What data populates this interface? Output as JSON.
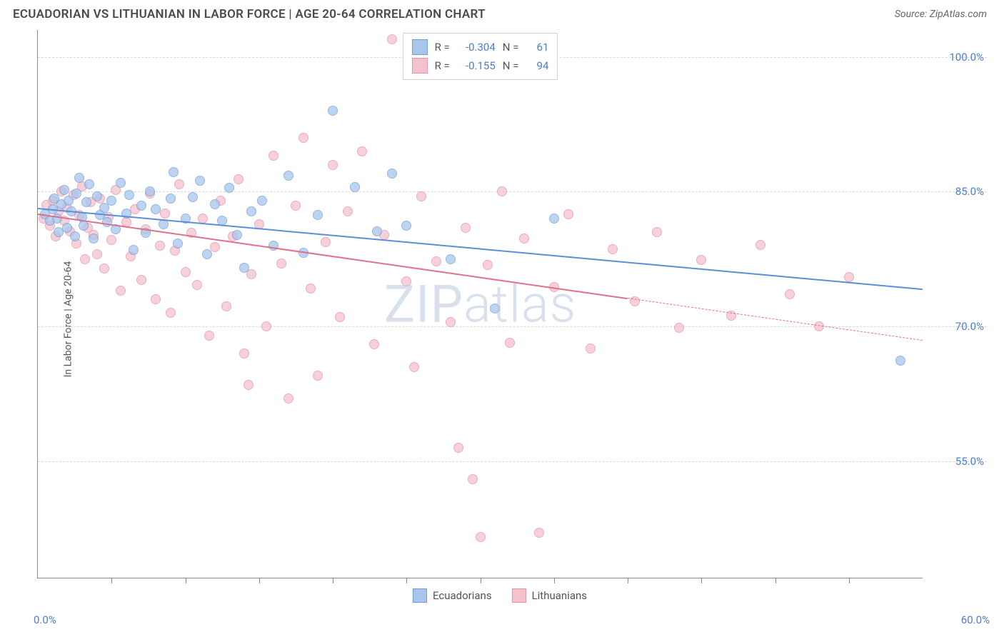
{
  "title": "ECUADORIAN VS LITHUANIAN IN LABOR FORCE | AGE 20-64 CORRELATION CHART",
  "source_label": "Source: ZipAtlas.com",
  "y_axis_label": "In Labor Force | Age 20-64",
  "watermark": "ZIPatlas",
  "chart": {
    "type": "scatter",
    "background_color": "#ffffff",
    "grid_color": "#d8d8d8",
    "axis_color": "#888888",
    "tick_label_color": "#4a7fd1",
    "axis_label_color": "#555555",
    "axis_label_fontsize": 14,
    "tick_label_fontsize": 15,
    "x_domain": [
      0,
      60
    ],
    "y_domain": [
      42,
      103
    ],
    "x_min_label": "0.0%",
    "x_max_label": "60.0%",
    "y_ticks": [
      55.0,
      70.0,
      85.0,
      100.0
    ],
    "y_tick_labels": [
      "55.0%",
      "70.0%",
      "85.0%",
      "100.0%"
    ],
    "x_tick_positions": [
      5,
      10,
      15,
      20,
      25,
      30,
      35,
      40,
      45,
      50,
      55
    ],
    "marker_radius": 7,
    "marker_fill_opacity": 0.35,
    "line_width": 2.5,
    "series": [
      {
        "name": "Ecuadorians",
        "color_fill": "#a8c6ec",
        "color_stroke": "#6f9fd8",
        "line_color": "#5b8fd6",
        "R": "-0.304",
        "N": "61",
        "trend": {
          "x1": 0,
          "y1": 83.2,
          "x2": 60,
          "y2": 74.2,
          "solid_until_x": 60
        },
        "points": [
          [
            0.5,
            82.5
          ],
          [
            0.8,
            81.8
          ],
          [
            1.0,
            83.0
          ],
          [
            1.1,
            84.2
          ],
          [
            1.3,
            82.0
          ],
          [
            1.4,
            80.5
          ],
          [
            1.6,
            83.6
          ],
          [
            1.8,
            85.2
          ],
          [
            2.0,
            81.0
          ],
          [
            2.1,
            84.0
          ],
          [
            2.3,
            82.8
          ],
          [
            2.5,
            80.0
          ],
          [
            2.6,
            84.8
          ],
          [
            2.8,
            86.5
          ],
          [
            3.0,
            82.2
          ],
          [
            3.1,
            81.2
          ],
          [
            3.3,
            83.8
          ],
          [
            3.5,
            85.8
          ],
          [
            3.8,
            79.8
          ],
          [
            4.0,
            84.5
          ],
          [
            4.2,
            82.4
          ],
          [
            4.5,
            83.2
          ],
          [
            4.7,
            81.6
          ],
          [
            5.0,
            84.0
          ],
          [
            5.3,
            80.8
          ],
          [
            5.6,
            86.0
          ],
          [
            6.0,
            82.6
          ],
          [
            6.2,
            84.6
          ],
          [
            6.5,
            78.5
          ],
          [
            7.0,
            83.4
          ],
          [
            7.3,
            80.4
          ],
          [
            7.6,
            85.0
          ],
          [
            8.0,
            83.0
          ],
          [
            8.5,
            81.4
          ],
          [
            9.0,
            84.2
          ],
          [
            9.2,
            87.2
          ],
          [
            9.5,
            79.2
          ],
          [
            10.0,
            82.0
          ],
          [
            10.5,
            84.4
          ],
          [
            11.0,
            86.2
          ],
          [
            11.5,
            78.0
          ],
          [
            12.0,
            83.6
          ],
          [
            12.5,
            81.8
          ],
          [
            13.0,
            85.4
          ],
          [
            13.5,
            80.2
          ],
          [
            14.0,
            76.5
          ],
          [
            14.5,
            82.8
          ],
          [
            15.2,
            84.0
          ],
          [
            16.0,
            79.0
          ],
          [
            17.0,
            86.8
          ],
          [
            18.0,
            78.2
          ],
          [
            19.0,
            82.4
          ],
          [
            20.0,
            94.0
          ],
          [
            21.5,
            85.5
          ],
          [
            23.0,
            80.6
          ],
          [
            24.0,
            87.0
          ],
          [
            25.0,
            81.2
          ],
          [
            28.0,
            77.5
          ],
          [
            31.0,
            72.0
          ],
          [
            35.0,
            82.0
          ],
          [
            58.5,
            66.2
          ]
        ]
      },
      {
        "name": "Lithuanians",
        "color_fill": "#f4c2cd",
        "color_stroke": "#e891a5",
        "line_color": "#e26f8a",
        "R": "-0.155",
        "N": "94",
        "trend": {
          "x1": 0,
          "y1": 82.6,
          "x2": 60,
          "y2": 68.5,
          "solid_until_x": 40
        },
        "points": [
          [
            0.4,
            82.0
          ],
          [
            0.6,
            83.5
          ],
          [
            0.8,
            81.2
          ],
          [
            1.0,
            84.0
          ],
          [
            1.2,
            80.0
          ],
          [
            1.4,
            82.8
          ],
          [
            1.6,
            85.0
          ],
          [
            1.8,
            81.8
          ],
          [
            2.0,
            83.2
          ],
          [
            2.2,
            80.6
          ],
          [
            2.4,
            84.6
          ],
          [
            2.6,
            79.2
          ],
          [
            2.8,
            82.4
          ],
          [
            3.0,
            85.6
          ],
          [
            3.2,
            77.5
          ],
          [
            3.4,
            81.0
          ],
          [
            3.6,
            83.8
          ],
          [
            3.8,
            80.2
          ],
          [
            4.0,
            78.0
          ],
          [
            4.2,
            84.2
          ],
          [
            4.5,
            76.4
          ],
          [
            4.8,
            82.2
          ],
          [
            5.0,
            79.6
          ],
          [
            5.3,
            85.2
          ],
          [
            5.6,
            74.0
          ],
          [
            6.0,
            81.6
          ],
          [
            6.3,
            77.8
          ],
          [
            6.6,
            83.0
          ],
          [
            7.0,
            75.2
          ],
          [
            7.3,
            80.8
          ],
          [
            7.6,
            84.8
          ],
          [
            8.0,
            73.0
          ],
          [
            8.3,
            79.0
          ],
          [
            8.6,
            82.6
          ],
          [
            9.0,
            71.5
          ],
          [
            9.3,
            78.4
          ],
          [
            9.6,
            85.8
          ],
          [
            10.0,
            76.0
          ],
          [
            10.4,
            80.4
          ],
          [
            10.8,
            74.6
          ],
          [
            11.2,
            82.0
          ],
          [
            11.6,
            69.0
          ],
          [
            12.0,
            78.8
          ],
          [
            12.4,
            84.0
          ],
          [
            12.8,
            72.2
          ],
          [
            13.2,
            80.0
          ],
          [
            13.6,
            86.4
          ],
          [
            14.0,
            67.0
          ],
          [
            14.3,
            63.5
          ],
          [
            14.5,
            75.8
          ],
          [
            15.0,
            81.4
          ],
          [
            15.5,
            70.0
          ],
          [
            16.0,
            89.0
          ],
          [
            16.5,
            77.0
          ],
          [
            17.0,
            62.0
          ],
          [
            17.5,
            83.4
          ],
          [
            18.0,
            91.0
          ],
          [
            18.5,
            74.2
          ],
          [
            19.0,
            64.5
          ],
          [
            19.5,
            79.4
          ],
          [
            20.0,
            88.0
          ],
          [
            20.5,
            71.0
          ],
          [
            21.0,
            82.8
          ],
          [
            22.0,
            89.5
          ],
          [
            22.8,
            68.0
          ],
          [
            23.5,
            80.2
          ],
          [
            24.0,
            102.0
          ],
          [
            25.0,
            75.0
          ],
          [
            25.5,
            65.5
          ],
          [
            26.0,
            84.5
          ],
          [
            27.0,
            77.2
          ],
          [
            28.0,
            70.5
          ],
          [
            28.5,
            56.5
          ],
          [
            29.0,
            81.0
          ],
          [
            29.5,
            53.0
          ],
          [
            30.0,
            46.5
          ],
          [
            30.5,
            76.8
          ],
          [
            31.5,
            85.0
          ],
          [
            32.0,
            68.2
          ],
          [
            33.0,
            79.8
          ],
          [
            34.0,
            47.0
          ],
          [
            35.0,
            74.4
          ],
          [
            36.0,
            82.5
          ],
          [
            37.5,
            67.5
          ],
          [
            39.0,
            78.6
          ],
          [
            40.5,
            72.8
          ],
          [
            42.0,
            80.5
          ],
          [
            43.5,
            69.8
          ],
          [
            45.0,
            77.4
          ],
          [
            47.0,
            71.2
          ],
          [
            49.0,
            79.1
          ],
          [
            51.0,
            73.6
          ],
          [
            53.0,
            70.0
          ],
          [
            55.0,
            75.5
          ]
        ]
      }
    ]
  },
  "legend_top": {
    "border_color": "#d0d0d0",
    "bg": "#ffffff",
    "R_label": "R =",
    "N_label": "N ="
  },
  "legend_bottom": {
    "items": [
      "Ecuadorians",
      "Lithuanians"
    ]
  }
}
